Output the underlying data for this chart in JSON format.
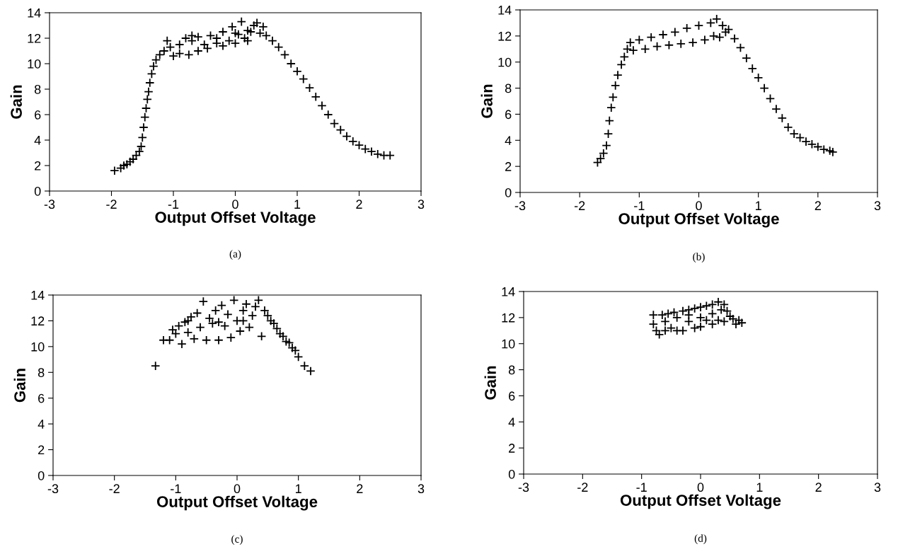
{
  "chart_data": [
    {
      "type": "scatter",
      "xlabel": "Output Offset Voltage",
      "ylabel": "Gain",
      "annotations": [
        "(a)"
      ],
      "xlim": [
        -3,
        3
      ],
      "ylim": [
        0,
        14
      ],
      "xticks": [
        -3,
        -2,
        -1,
        0,
        1,
        2,
        3
      ],
      "yticks": [
        0,
        2,
        4,
        6,
        8,
        10,
        12,
        14
      ],
      "grid": false,
      "marker": "cross",
      "color": "#000000",
      "x": [
        -1.95,
        -1.85,
        -1.8,
        -1.75,
        -1.7,
        -1.65,
        -1.6,
        -1.55,
        -1.52,
        -1.5,
        -1.48,
        -1.46,
        -1.44,
        -1.42,
        -1.4,
        -1.38,
        -1.35,
        -1.32,
        -1.28,
        -1.22,
        -1.15,
        -1.1,
        -1.05,
        -1.0,
        -0.9,
        -0.8,
        -0.75,
        -0.7,
        -0.6,
        -0.5,
        -0.45,
        -0.4,
        -0.3,
        -0.2,
        -0.2,
        -0.1,
        -0.05,
        0,
        0.05,
        0.1,
        0.15,
        0.2,
        0.25,
        0.3,
        0.35,
        0.4,
        0.45,
        0.5,
        0.6,
        0.7,
        0.8,
        0.9,
        1.0,
        1.1,
        1.2,
        1.3,
        1.4,
        1.5,
        1.6,
        1.7,
        1.8,
        1.9,
        2.0,
        2.1,
        2.2,
        2.3,
        2.4,
        2.5,
        -0.9,
        -0.6,
        -0.3,
        0.2,
        -0.7,
        0.0
      ],
      "values": [
        1.6,
        1.8,
        2.0,
        2.1,
        2.3,
        2.5,
        2.8,
        3.1,
        3.5,
        4.2,
        5.0,
        5.8,
        6.5,
        7.2,
        7.8,
        8.5,
        9.2,
        9.8,
        10.3,
        10.7,
        11.0,
        11.8,
        11.3,
        10.6,
        11.5,
        12.0,
        10.7,
        11.8,
        12.1,
        11.5,
        11.2,
        12.2,
        12.0,
        11.4,
        12.5,
        11.8,
        12.9,
        11.6,
        12.3,
        13.3,
        12.0,
        11.8,
        12.5,
        13.0,
        13.2,
        12.4,
        12.9,
        12.2,
        11.8,
        11.3,
        10.7,
        10.0,
        9.4,
        8.8,
        8.1,
        7.4,
        6.7,
        6.0,
        5.3,
        4.8,
        4.3,
        3.9,
        3.6,
        3.3,
        3.1,
        2.9,
        2.8,
        2.8,
        10.8,
        11.0,
        11.6,
        12.6,
        12.2,
        12.4
      ]
    },
    {
      "type": "scatter",
      "xlabel": "Output Offset Voltage",
      "ylabel": "Gain",
      "annotations": [
        "(b)"
      ],
      "xlim": [
        -3,
        3
      ],
      "ylim": [
        0,
        14
      ],
      "xticks": [
        -3,
        -2,
        -1,
        0,
        1,
        2,
        3
      ],
      "yticks": [
        0,
        2,
        4,
        6,
        8,
        10,
        12,
        14
      ],
      "grid": false,
      "marker": "cross",
      "color": "#000000",
      "x": [
        -1.7,
        -1.65,
        -1.6,
        -1.55,
        -1.52,
        -1.5,
        -1.47,
        -1.44,
        -1.4,
        -1.36,
        -1.3,
        -1.25,
        -1.2,
        -1.15,
        -1.1,
        -1.0,
        -0.9,
        -0.8,
        -0.7,
        -0.6,
        -0.5,
        -0.4,
        -0.3,
        -0.2,
        -0.1,
        0,
        0.1,
        0.2,
        0.25,
        0.3,
        0.35,
        0.4,
        0.45,
        0.5,
        0.6,
        0.7,
        0.8,
        0.9,
        1.0,
        1.1,
        1.2,
        1.3,
        1.4,
        1.5,
        1.6,
        1.7,
        1.8,
        1.9,
        2.0,
        2.1,
        2.2,
        2.25
      ],
      "values": [
        2.3,
        2.6,
        3.0,
        3.6,
        4.5,
        5.5,
        6.5,
        7.3,
        8.2,
        9.0,
        9.8,
        10.4,
        11.0,
        11.5,
        10.9,
        11.7,
        11.0,
        11.9,
        11.2,
        12.1,
        11.3,
        12.3,
        11.4,
        12.6,
        11.5,
        12.8,
        11.7,
        13.0,
        12.0,
        13.3,
        11.9,
        12.8,
        12.3,
        12.5,
        11.8,
        11.1,
        10.3,
        9.5,
        8.8,
        8.0,
        7.2,
        6.4,
        5.7,
        5.0,
        4.5,
        4.2,
        3.9,
        3.7,
        3.5,
        3.3,
        3.2,
        3.1
      ]
    },
    {
      "type": "scatter",
      "xlabel": "Output Offset Voltage",
      "ylabel": "Gain",
      "annotations": [
        "(c)"
      ],
      "xlim": [
        -3,
        3
      ],
      "ylim": [
        0,
        14
      ],
      "xticks": [
        -3,
        -2,
        -1,
        0,
        1,
        2,
        3
      ],
      "yticks": [
        0,
        2,
        4,
        6,
        8,
        10,
        12,
        14
      ],
      "grid": false,
      "marker": "cross",
      "color": "#000000",
      "x": [
        -1.33,
        -1.2,
        -1.1,
        -1.05,
        -1.0,
        -0.95,
        -0.9,
        -0.85,
        -0.8,
        -0.75,
        -0.7,
        -0.65,
        -0.6,
        -0.55,
        -0.5,
        -0.45,
        -0.4,
        -0.35,
        -0.3,
        -0.25,
        -0.2,
        -0.15,
        -0.1,
        -0.05,
        0,
        0.05,
        0.1,
        0.15,
        0.2,
        0.25,
        0.3,
        0.35,
        0.4,
        0.45,
        0.5,
        0.55,
        0.6,
        0.65,
        0.7,
        0.75,
        0.8,
        0.85,
        0.9,
        0.95,
        1.0,
        1.1,
        1.2,
        -0.8,
        -0.3,
        0.1
      ],
      "values": [
        8.5,
        10.5,
        10.5,
        11.3,
        11.0,
        11.6,
        10.2,
        11.9,
        11.1,
        12.3,
        10.6,
        12.6,
        11.5,
        13.5,
        10.5,
        12.2,
        11.8,
        12.8,
        10.5,
        13.2,
        11.6,
        12.5,
        10.7,
        13.6,
        12.0,
        11.2,
        12.8,
        13.3,
        11.5,
        12.4,
        13.1,
        13.6,
        10.8,
        12.8,
        12.4,
        12.0,
        11.8,
        11.4,
        11.0,
        10.8,
        10.4,
        10.3,
        9.9,
        9.7,
        9.2,
        8.5,
        8.1,
        12.0,
        11.9,
        12.0
      ]
    },
    {
      "type": "scatter",
      "xlabel": "Output Offset Voltage",
      "ylabel": "Gain",
      "annotations": [
        "(d)"
      ],
      "xlim": [
        -3,
        3
      ],
      "ylim": [
        0,
        14
      ],
      "xticks": [
        -3,
        -2,
        -1,
        0,
        1,
        2,
        3
      ],
      "yticks": [
        0,
        2,
        4,
        6,
        8,
        10,
        12,
        14
      ],
      "grid": false,
      "marker": "cross",
      "color": "#000000",
      "x": [
        -0.8,
        -0.8,
        -0.75,
        -0.7,
        -0.65,
        -0.6,
        -0.55,
        -0.5,
        -0.45,
        -0.4,
        -0.3,
        -0.3,
        -0.2,
        -0.2,
        -0.1,
        -0.1,
        0,
        0,
        0.1,
        0.1,
        0.2,
        0.2,
        0.3,
        0.3,
        0.35,
        0.4,
        0.4,
        0.45,
        0.5,
        0.55,
        0.6,
        0.65,
        0.7,
        -0.6,
        -0.4,
        -0.2,
        0,
        0.2
      ],
      "values": [
        12.2,
        11.5,
        11.0,
        10.7,
        12.2,
        11.0,
        12.3,
        11.2,
        12.4,
        11.0,
        12.5,
        11.0,
        12.6,
        11.7,
        12.7,
        11.2,
        12.8,
        11.3,
        12.9,
        11.8,
        13.0,
        11.5,
        13.2,
        11.8,
        12.6,
        13.0,
        11.7,
        12.5,
        12.1,
        11.9,
        11.5,
        11.8,
        11.6,
        11.7,
        12.0,
        12.2,
        12.0,
        12.3
      ]
    }
  ]
}
